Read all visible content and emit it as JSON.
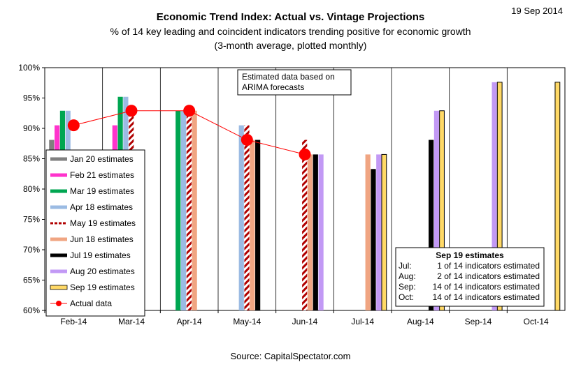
{
  "header": {
    "date": "19 Sep 2014",
    "title": "Economic Trend Index: Actual vs. Vintage Projections",
    "subtitle1": "% of 14 key leading and coincident indicators trending positive for economic growth",
    "subtitle2": "(3-month average, plotted monthly)"
  },
  "source": "Source: CapitalSpectator.com",
  "annotation": {
    "line1": "Estimated data based on",
    "line2": "ARIMA forecasts"
  },
  "estimates_box": {
    "title": "Sep 19 estimates",
    "rows": [
      {
        "month": "Jul:",
        "text": "1 of 14 indicators estimated"
      },
      {
        "month": "Aug:",
        "text": "2 of 14 indicators estimated"
      },
      {
        "month": "Sep:",
        "text": "14 of 14 indicators estimated"
      },
      {
        "month": "Oct:",
        "text": "14 of 14 indicators estimated"
      }
    ]
  },
  "chart_data": {
    "type": "bar",
    "categories": [
      "Feb-14",
      "Mar-14",
      "Apr-14",
      "May-14",
      "Jun-14",
      "Jul-14",
      "Aug-14",
      "Sep-14",
      "Oct-14"
    ],
    "ylim": [
      0.6,
      1.0
    ],
    "yticks": [
      {
        "value": 0.6,
        "label": "60%"
      },
      {
        "value": 0.65,
        "label": "65%"
      },
      {
        "value": 0.7,
        "label": "70%"
      },
      {
        "value": 0.75,
        "label": "75%"
      },
      {
        "value": 0.8,
        "label": "80%"
      },
      {
        "value": 0.85,
        "label": "85%"
      },
      {
        "value": 0.9,
        "label": "90%"
      },
      {
        "value": 0.95,
        "label": "95%"
      },
      {
        "value": 1.0,
        "label": "100%"
      }
    ],
    "legend_position": "left",
    "series": [
      {
        "name": "Jan 20 estimates",
        "color": "#808080",
        "pattern": "solid",
        "values": [
          0.881,
          null,
          null,
          null,
          null,
          null,
          null,
          null,
          null
        ]
      },
      {
        "name": "Feb 21 estimates",
        "color": "#ff33cc",
        "pattern": "solid",
        "values": [
          0.905,
          0.905,
          null,
          null,
          null,
          null,
          null,
          null,
          null
        ]
      },
      {
        "name": "Mar 19 estimates",
        "color": "#00a651",
        "pattern": "solid",
        "values": [
          0.929,
          0.952,
          0.929,
          null,
          null,
          null,
          null,
          null,
          null
        ]
      },
      {
        "name": "Apr 18 estimates",
        "color": "#9bbbe3",
        "pattern": "solid",
        "values": [
          0.929,
          0.952,
          0.929,
          0.905,
          null,
          null,
          null,
          null,
          null
        ]
      },
      {
        "name": "May 19 estimates",
        "color": "#b00000",
        "pattern": "hatch",
        "values": [
          null,
          0.929,
          0.929,
          0.905,
          0.881,
          null,
          null,
          null,
          null
        ]
      },
      {
        "name": "Jun 18 estimates",
        "color": "#f0a582",
        "pattern": "solid",
        "values": [
          null,
          null,
          0.929,
          0.881,
          0.857,
          0.857,
          null,
          null,
          null
        ]
      },
      {
        "name": "Jul 19 estimates",
        "color": "#000000",
        "pattern": "solid",
        "values": [
          null,
          null,
          null,
          0.881,
          0.857,
          0.833,
          0.881,
          null,
          null
        ]
      },
      {
        "name": "Aug 20 estimates",
        "color": "#c299f5",
        "pattern": "solid",
        "values": [
          null,
          null,
          null,
          null,
          0.857,
          0.857,
          0.929,
          0.976,
          null
        ]
      },
      {
        "name": "Sep 19 estimates",
        "color": "#ffd966",
        "pattern": "outlined",
        "values": [
          null,
          null,
          null,
          null,
          null,
          0.857,
          0.929,
          0.976,
          0.976
        ]
      }
    ],
    "actual": {
      "name": "Actual data",
      "color": "#ff0000",
      "values": [
        0.905,
        0.929,
        0.929,
        0.881,
        0.857,
        null,
        null,
        null,
        null
      ]
    }
  }
}
